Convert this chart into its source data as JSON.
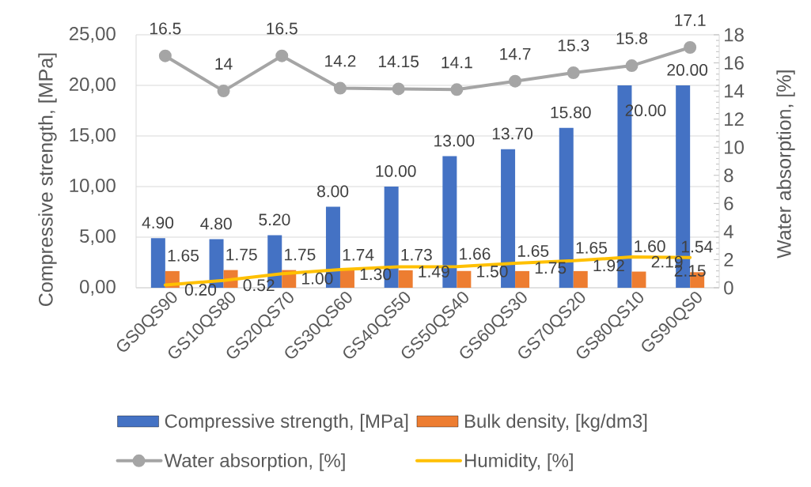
{
  "chart_data": {
    "type": "bar",
    "categories": [
      "GS0QS90",
      "GS10QS80",
      "GS20QS70",
      "GS30QS60",
      "GS40QS50",
      "GS50QS40",
      "GS60QS30",
      "GS70QS20",
      "GS80QS10",
      "GS90QS0"
    ],
    "ylabel": "Compressive strength, [MPa]",
    "y2label": "Water absorption, [%]",
    "ylim": [
      0,
      25
    ],
    "yticks": [
      {
        "value": 0,
        "label": "0,00"
      },
      {
        "value": 5,
        "label": "5,00"
      },
      {
        "value": 10,
        "label": "10,00"
      },
      {
        "value": 15,
        "label": "15,00"
      },
      {
        "value": 20,
        "label": "20,00"
      },
      {
        "value": 25,
        "label": "25,00"
      }
    ],
    "y2lim": [
      0,
      18
    ],
    "y2ticks": [
      0,
      2,
      4,
      6,
      8,
      10,
      12,
      14,
      16,
      18
    ],
    "grid": "y",
    "legend": "bottom",
    "series": [
      {
        "name": "Compressive strength, [MPa]",
        "color": "#4472c4",
        "values": [
          4.9,
          4.8,
          5.2,
          8,
          10,
          13,
          13.7,
          15.8,
          20,
          20
        ],
        "value_labels": [
          "4.90",
          "4.80",
          "5.20",
          "8.00",
          "10.00",
          "13.00",
          "13.70",
          "15.80",
          "20.00",
          "20.00"
        ]
      },
      {
        "name": "Bulk density, [kg/dm3]",
        "color": "#ed7d31",
        "values": [
          1.65,
          1.75,
          1.75,
          1.74,
          1.73,
          1.66,
          1.65,
          1.65,
          1.6,
          1.54
        ],
        "value_labels": [
          "1.65",
          "1.75",
          "1.75",
          "1.74",
          "1.73",
          "1.66",
          "1.65",
          "1.65",
          "1.60",
          "1.54"
        ]
      },
      {
        "name": "Water absorption, [%]",
        "type": "line",
        "axis": "y2",
        "color": "#a5a5a5",
        "marker": "circle",
        "values": [
          16.5,
          14,
          16.5,
          14.2,
          14.15,
          14.1,
          14.7,
          15.3,
          15.8,
          17.1
        ],
        "value_labels": [
          "16.5",
          "14",
          "16.5",
          "14.2",
          "14.15",
          "14.1",
          "14.7",
          "15.3",
          "15.8",
          "17.1"
        ]
      },
      {
        "name": "Humidity, [%]",
        "type": "line",
        "axis": "y2",
        "color": "#ffc000",
        "values": [
          0.2,
          0.52,
          1,
          1.3,
          1.49,
          1.5,
          1.75,
          1.92,
          2.19,
          2.15
        ],
        "value_labels": [
          "0.20",
          "0.52",
          "1.00",
          "1.30",
          "1.49",
          "1.50",
          "1.75",
          "1.92",
          "2.19",
          "2.15"
        ]
      }
    ]
  }
}
